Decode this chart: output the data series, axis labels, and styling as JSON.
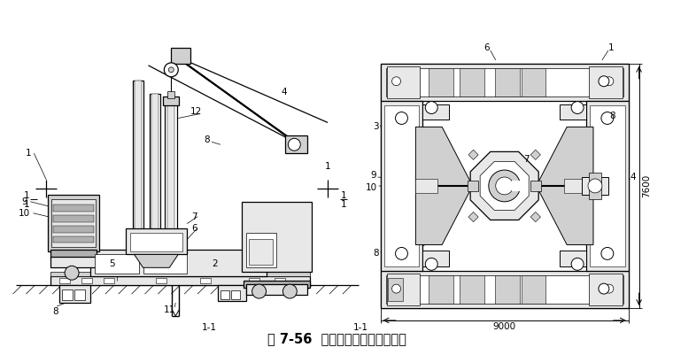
{
  "title": "图 7-56  全液压式静力压桩机压桩",
  "bg_color": "#f5f5f5",
  "fig_width": 7.6,
  "fig_height": 4.01,
  "dim_9000": "9000",
  "dim_7600": "7600",
  "lc": "black",
  "lw_thin": 0.5,
  "lw_med": 0.9,
  "lw_thick": 1.4,
  "gray1": "#b0b0b0",
  "gray2": "#d0d0d0",
  "gray3": "#e8e8e8"
}
